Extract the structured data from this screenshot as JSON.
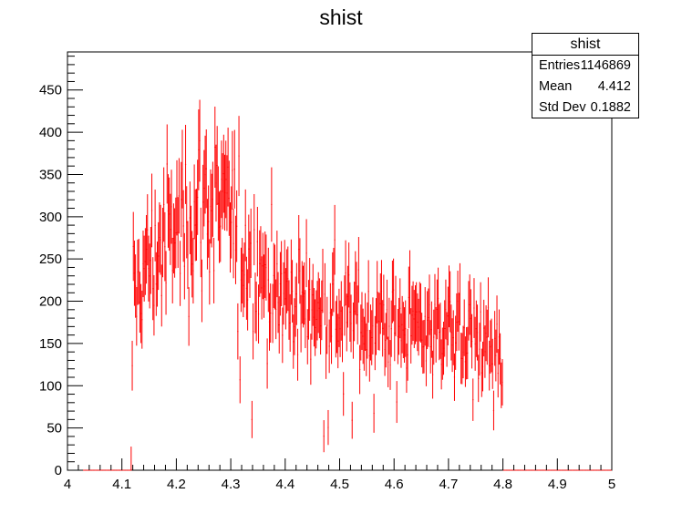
{
  "chart_data": {
    "type": "histogram",
    "title": "shist",
    "xlabel": "",
    "ylabel": "",
    "xlim": [
      4,
      5
    ],
    "ylim": [
      0,
      495
    ],
    "x_ticks": [
      "4",
      "4.1",
      "4.2",
      "4.3",
      "4.4",
      "4.5",
      "4.6",
      "4.7",
      "4.8",
      "4.9",
      "5"
    ],
    "y_ticks": [
      "0",
      "50",
      "100",
      "150",
      "200",
      "250",
      "300",
      "350",
      "400",
      "450"
    ],
    "series_color": "#ff0000",
    "error_bars": true,
    "envelope": {
      "note": "approximate per-bin mean count profile read from the plot",
      "x": [
        4.0,
        4.118,
        4.12,
        4.15,
        4.2,
        4.25,
        4.3,
        4.35,
        4.4,
        4.45,
        4.5,
        4.55,
        4.6,
        4.65,
        4.7,
        4.75,
        4.79,
        4.8,
        4.801,
        5.0
      ],
      "y": [
        0,
        0,
        205,
        245,
        285,
        320,
        295,
        235,
        205,
        190,
        185,
        178,
        172,
        170,
        168,
        160,
        140,
        100,
        0,
        0
      ]
    },
    "stats": {
      "name": "shist",
      "entries_label": "Entries",
      "entries": "1146869",
      "mean_label": "Mean",
      "mean": "4.412",
      "stddev_label": "Std Dev",
      "stddev": "0.1882"
    }
  }
}
